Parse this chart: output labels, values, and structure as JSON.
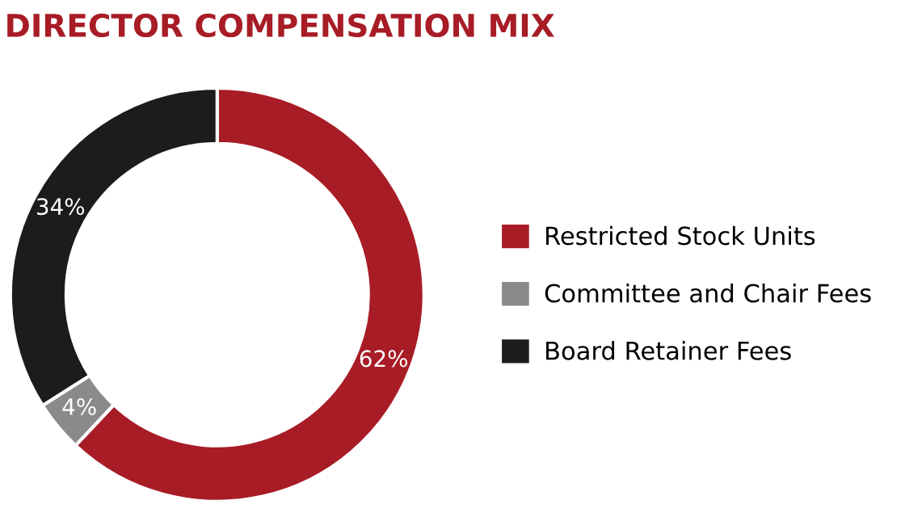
{
  "chart_data": {
    "type": "donut",
    "title": "DIRECTOR COMPENSATION MIX",
    "categories": [
      "Restricted Stock Units",
      "Committee and Chair Fees",
      "Board Retainer Fees"
    ],
    "values": [
      62,
      4,
      34
    ],
    "colors": [
      "#a81c26",
      "#8a8a8a",
      "#1c1c1c"
    ],
    "value_labels": [
      "62%",
      "4%",
      "34%"
    ],
    "legend": "right"
  }
}
